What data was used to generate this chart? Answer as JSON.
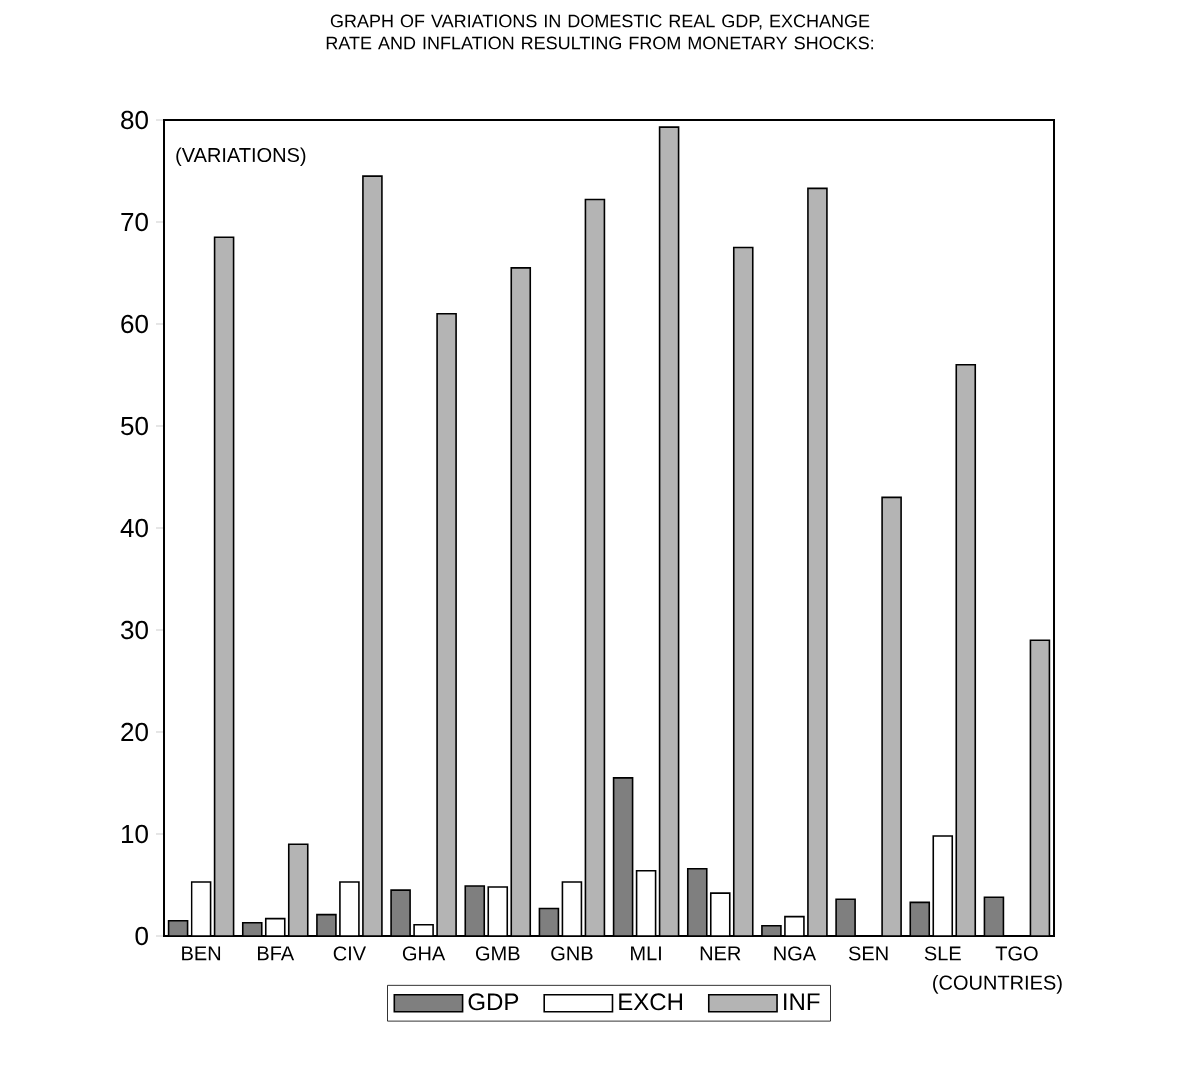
{
  "chart_data": {
    "type": "bar",
    "title": "GRAPH OF VARIATIONS IN DOMESTIC REAL GDP, EXCHANGE RATE AND INFLATION RESULTING FROM MONETARY SHOCKS:",
    "xlabel": "(COUNTRIES)",
    "ylabel": "(VARIATIONS)",
    "categories": [
      "BEN",
      "BFA",
      "CIV",
      "GHA",
      "GMB",
      "GNB",
      "MLI",
      "NER",
      "NGA",
      "SEN",
      "SLE",
      "TGO"
    ],
    "series": [
      {
        "name": "GDP",
        "color": "#7f7f7f",
        "values": [
          1.5,
          1.3,
          2.1,
          4.5,
          4.9,
          2.7,
          15.5,
          6.6,
          1.0,
          3.6,
          3.3,
          3.8
        ]
      },
      {
        "name": "EXCH",
        "color": "#ffffff",
        "values": [
          5.3,
          1.7,
          5.3,
          1.1,
          4.8,
          5.3,
          6.4,
          4.2,
          1.9,
          null,
          9.8,
          null
        ]
      },
      {
        "name": "INF",
        "color": "#b4b4b4",
        "values": [
          68.5,
          9,
          74.5,
          61,
          65.5,
          72.2,
          79.3,
          67.5,
          73.3,
          43,
          56,
          29
        ]
      }
    ],
    "ylim": [
      0,
      80
    ],
    "yticks": [
      0,
      10,
      20,
      30,
      40,
      50,
      60,
      70,
      80
    ],
    "legend": "bottom"
  }
}
